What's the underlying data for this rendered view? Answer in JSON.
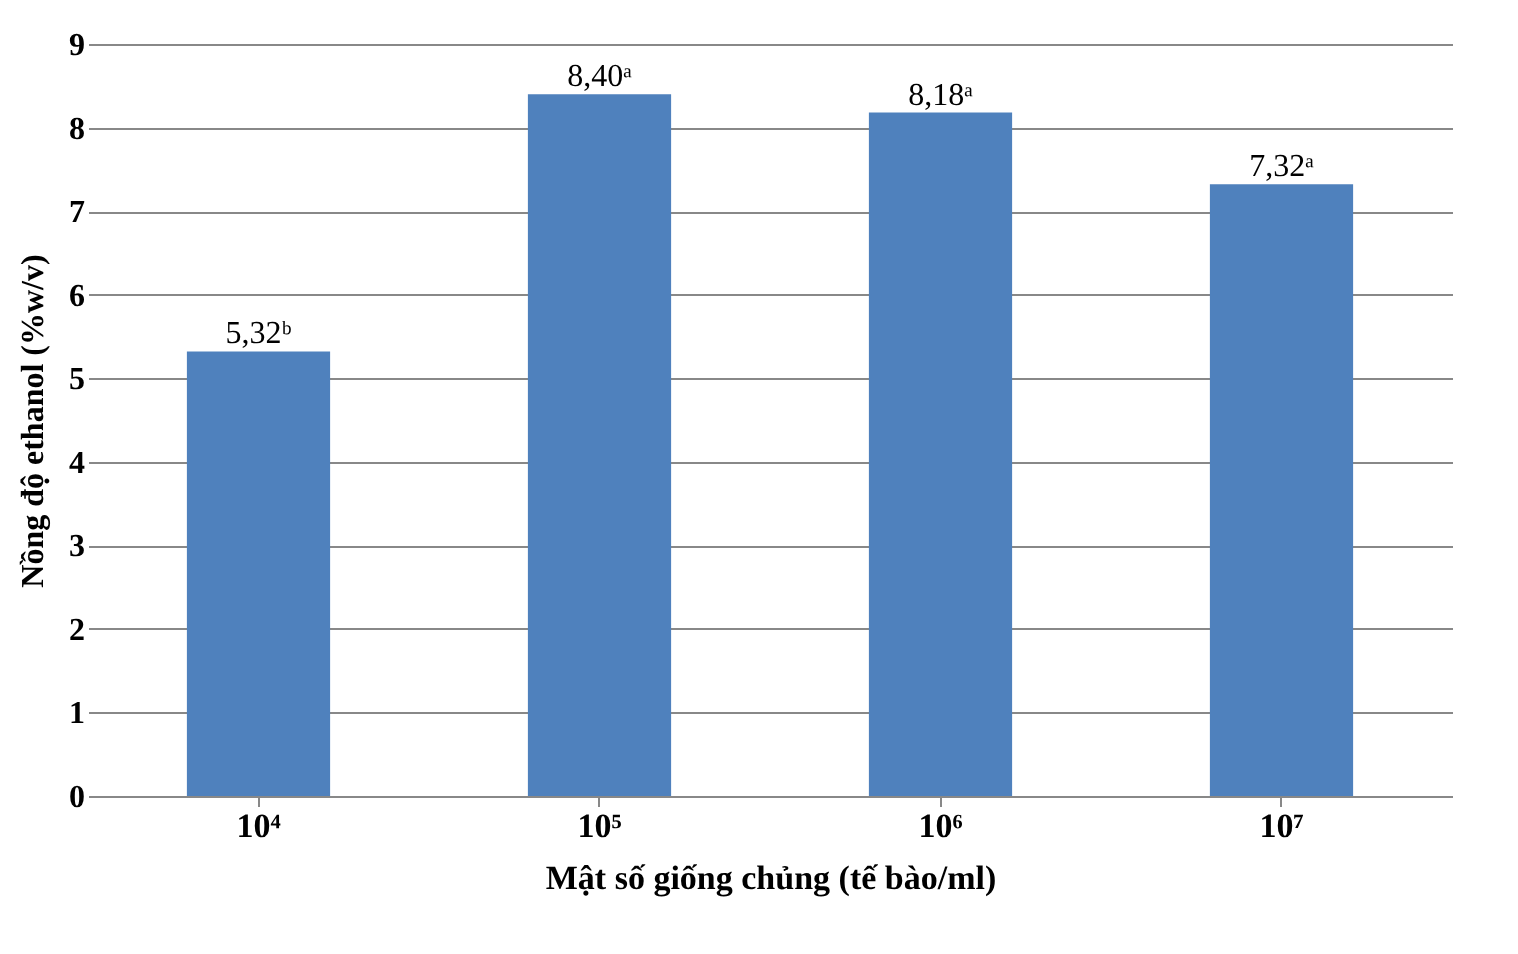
{
  "chart_data": {
    "type": "bar",
    "xlabel": "Mật số giống chủng (tế bào/ml)",
    "ylabel": "Nồng độ ethanol (%w/v)",
    "categories": [
      "10⁴",
      "10⁵",
      "10⁶",
      "10⁷"
    ],
    "values": [
      5.32,
      8.4,
      8.18,
      7.32
    ],
    "color": "#4f81bd",
    "value_labels": [
      "5,32ᵇ",
      "8,40ᵃ",
      "8,18ᵃ",
      "7,32ᵃ"
    ],
    "ylim": [
      0,
      9
    ],
    "yticks": [
      0,
      1,
      2,
      3,
      4,
      5,
      6,
      7,
      8,
      9
    ],
    "grid": "y"
  }
}
